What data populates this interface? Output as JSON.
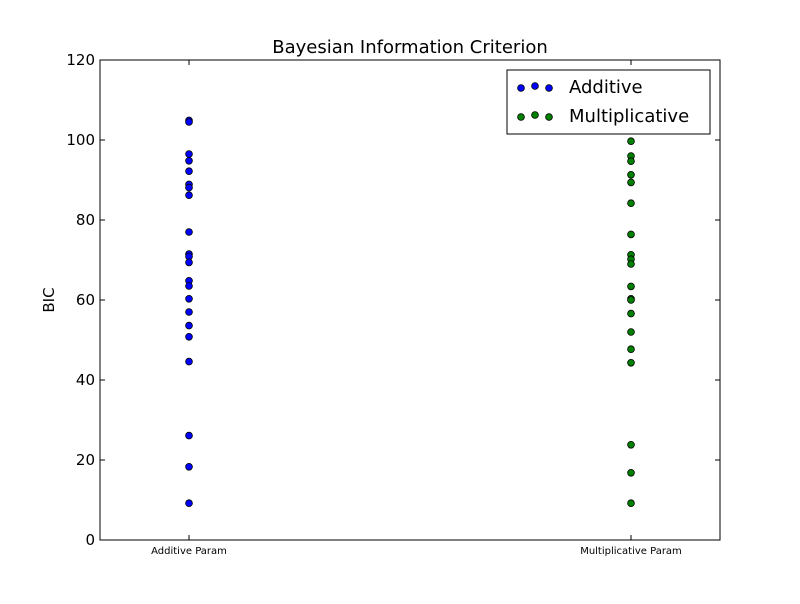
{
  "chart_data": {
    "type": "scatter",
    "title": "Bayesian Information Criterion",
    "xlabel": "",
    "ylabel": "BIC",
    "ylim": [
      0,
      120
    ],
    "yticks": [
      0,
      20,
      40,
      60,
      80,
      100,
      120
    ],
    "categories": [
      "Additive Param",
      "Multiplicative Param"
    ],
    "grid": false,
    "legend_position": "top-right",
    "series": [
      {
        "name": "Additive",
        "color": "#0000ff",
        "category": "Additive Param",
        "values": [
          104.9,
          104.5,
          96.5,
          94.8,
          92.2,
          88.9,
          88.1,
          86.2,
          77.0,
          71.5,
          70.9,
          69.4,
          64.8,
          63.5,
          60.3,
          57.0,
          53.6,
          50.8,
          44.6,
          26.1,
          18.3,
          9.2
        ]
      },
      {
        "name": "Multiplicative",
        "color": "#008000",
        "category": "Multiplicative Param",
        "values": [
          99.7,
          96.0,
          94.7,
          91.3,
          89.4,
          84.2,
          76.4,
          71.3,
          70.2,
          69.0,
          63.4,
          60.3,
          60.0,
          56.6,
          52.0,
          47.7,
          44.3,
          23.8,
          16.8,
          9.2
        ]
      }
    ]
  }
}
